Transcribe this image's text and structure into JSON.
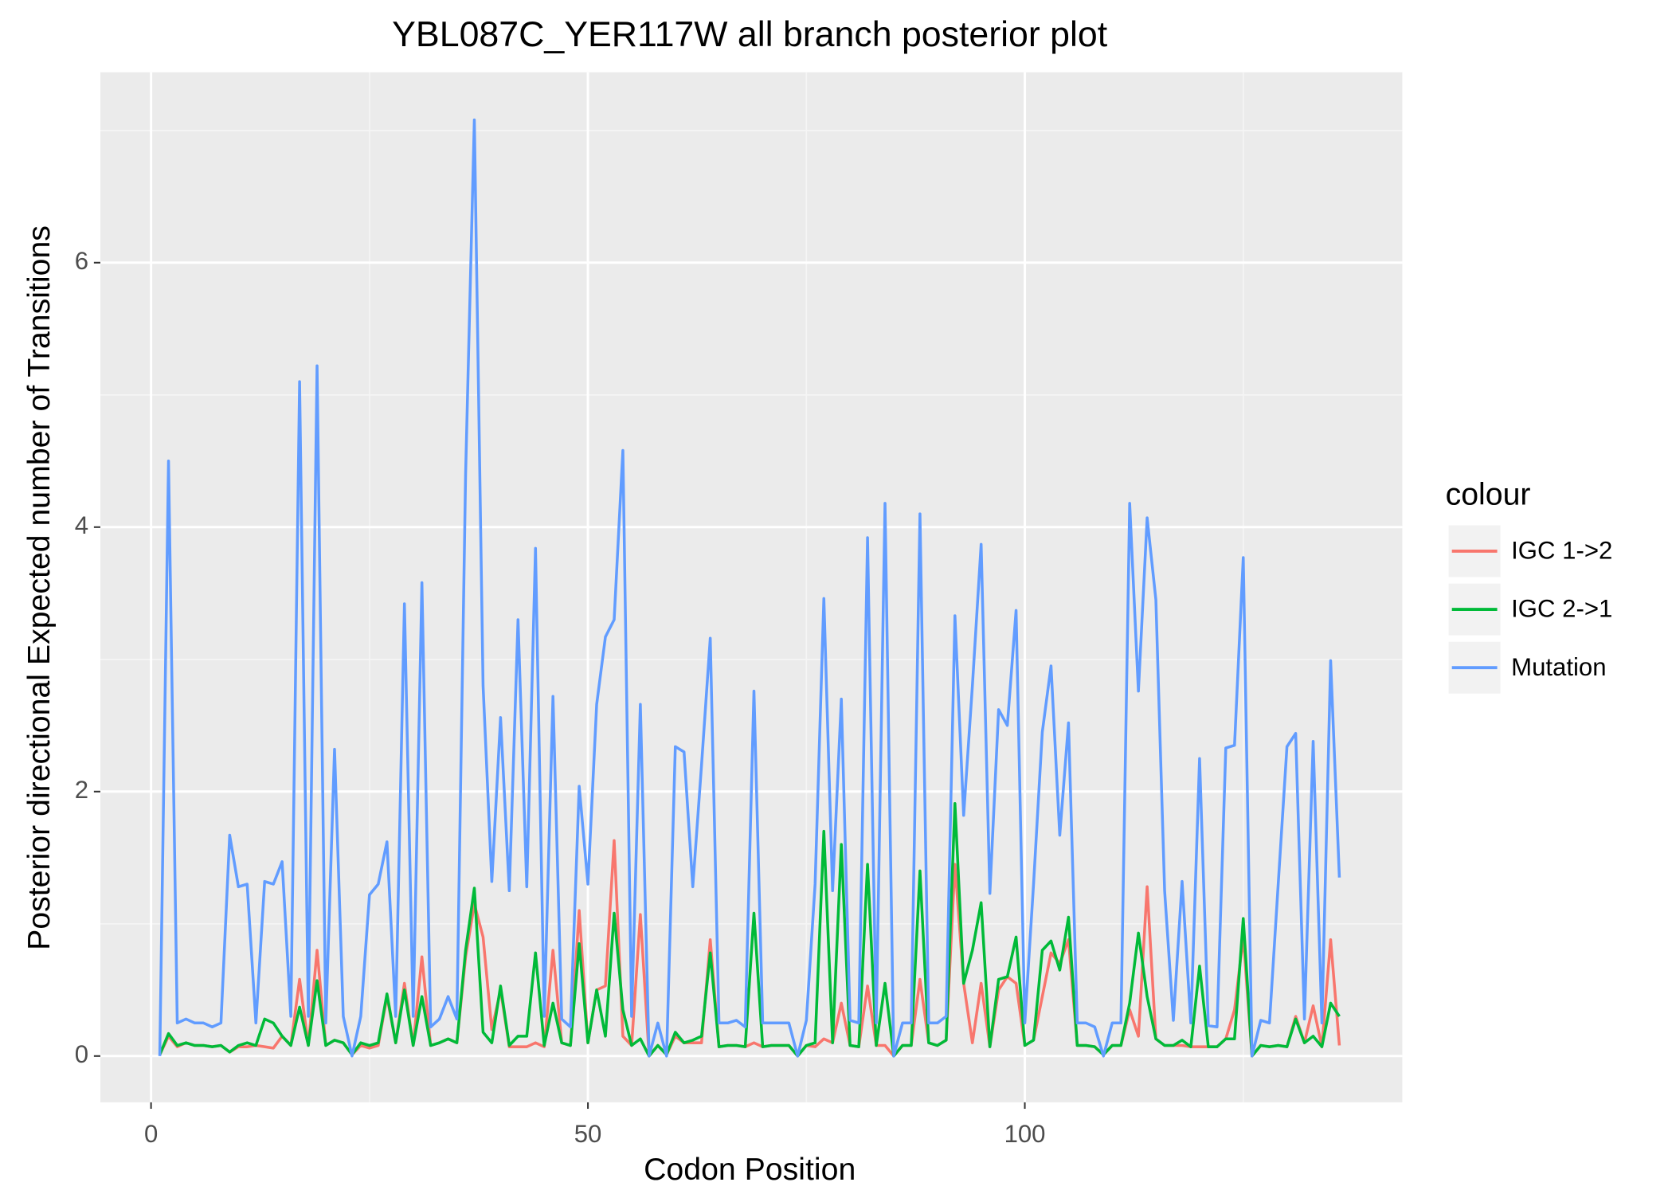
{
  "chart_data": {
    "type": "line",
    "title": "YBL087C_YER117W all branch posterior plot",
    "x_label": "Codon Position",
    "y_label": "Posterior directional Expected number of Transitions",
    "legend_title": "colour",
    "legend_position": "right",
    "grid": true,
    "xlim": [
      -5.8,
      143.2
    ],
    "ylim": [
      -0.35,
      7.44
    ],
    "xticks": [
      0,
      50,
      100
    ],
    "yticks": [
      0,
      2,
      4,
      6
    ],
    "x": [
      1,
      2,
      3,
      4,
      5,
      6,
      7,
      8,
      9,
      10,
      11,
      12,
      13,
      14,
      15,
      16,
      17,
      18,
      19,
      20,
      21,
      22,
      23,
      24,
      25,
      26,
      27,
      28,
      29,
      30,
      31,
      32,
      33,
      34,
      35,
      36,
      37,
      38,
      39,
      40,
      41,
      42,
      43,
      44,
      45,
      46,
      47,
      48,
      49,
      50,
      51,
      52,
      53,
      54,
      55,
      56,
      57,
      58,
      59,
      60,
      61,
      62,
      63,
      64,
      65,
      66,
      67,
      68,
      69,
      70,
      71,
      72,
      73,
      74,
      75,
      76,
      77,
      78,
      79,
      80,
      81,
      82,
      83,
      84,
      85,
      86,
      87,
      88,
      89,
      90,
      91,
      92,
      93,
      94,
      95,
      96,
      97,
      98,
      99,
      100,
      101,
      102,
      103,
      104,
      105,
      106,
      107,
      108,
      109,
      110,
      111,
      112,
      113,
      114,
      115,
      116,
      117,
      118,
      119,
      120,
      121,
      122,
      123,
      124,
      125,
      126,
      127,
      128,
      129,
      130,
      131,
      132,
      133,
      134,
      135,
      136
    ],
    "series": [
      {
        "name": "IGC 1->2",
        "color": "#F8766D",
        "values": [
          0.01,
          0.15,
          0.07,
          0.1,
          0.08,
          0.08,
          0.07,
          0.08,
          0.03,
          0.07,
          0.07,
          0.08,
          0.07,
          0.06,
          0.15,
          0.08,
          0.58,
          0.08,
          0.8,
          0.08,
          0.12,
          0.1,
          0.01,
          0.08,
          0.06,
          0.08,
          0.45,
          0.1,
          0.55,
          0.08,
          0.75,
          0.08,
          0.1,
          0.13,
          0.1,
          0.75,
          1.15,
          0.9,
          0.2,
          0.5,
          0.07,
          0.07,
          0.07,
          0.1,
          0.07,
          0.8,
          0.1,
          0.08,
          1.1,
          0.1,
          0.5,
          0.53,
          1.63,
          0.15,
          0.08,
          1.07,
          0.0,
          0.08,
          0.01,
          0.15,
          0.1,
          0.1,
          0.1,
          0.88,
          0.07,
          0.08,
          0.08,
          0.07,
          0.1,
          0.07,
          0.08,
          0.08,
          0.08,
          0.0,
          0.08,
          0.07,
          0.13,
          0.1,
          0.4,
          0.08,
          0.07,
          0.53,
          0.08,
          0.08,
          0.0,
          0.08,
          0.08,
          0.58,
          0.1,
          0.08,
          0.12,
          1.45,
          0.55,
          0.1,
          0.55,
          0.07,
          0.5,
          0.6,
          0.55,
          0.08,
          0.12,
          0.45,
          0.78,
          0.7,
          0.88,
          0.08,
          0.08,
          0.07,
          0.01,
          0.08,
          0.08,
          0.35,
          0.15,
          1.28,
          0.13,
          0.08,
          0.08,
          0.08,
          0.07,
          0.07,
          0.07,
          0.07,
          0.13,
          0.35,
          0.9,
          0.0,
          0.08,
          0.07,
          0.08,
          0.07,
          0.3,
          0.1,
          0.38,
          0.07,
          0.88,
          0.08
        ]
      },
      {
        "name": "IGC 2->1",
        "color": "#00BA38",
        "values": [
          0.01,
          0.17,
          0.08,
          0.1,
          0.08,
          0.08,
          0.07,
          0.08,
          0.03,
          0.08,
          0.1,
          0.08,
          0.28,
          0.25,
          0.15,
          0.08,
          0.37,
          0.08,
          0.57,
          0.08,
          0.12,
          0.1,
          0.01,
          0.1,
          0.08,
          0.1,
          0.47,
          0.1,
          0.5,
          0.08,
          0.45,
          0.08,
          0.1,
          0.13,
          0.1,
          0.8,
          1.27,
          0.18,
          0.1,
          0.53,
          0.08,
          0.15,
          0.15,
          0.78,
          0.08,
          0.4,
          0.1,
          0.08,
          0.85,
          0.1,
          0.5,
          0.15,
          1.08,
          0.35,
          0.08,
          0.13,
          0.0,
          0.08,
          0.01,
          0.18,
          0.1,
          0.12,
          0.15,
          0.78,
          0.07,
          0.08,
          0.08,
          0.07,
          1.08,
          0.07,
          0.08,
          0.08,
          0.08,
          0.0,
          0.08,
          0.1,
          1.7,
          0.1,
          1.6,
          0.08,
          0.07,
          1.45,
          0.08,
          0.55,
          0.0,
          0.08,
          0.08,
          1.4,
          0.1,
          0.08,
          0.12,
          1.91,
          0.55,
          0.8,
          1.16,
          0.07,
          0.58,
          0.6,
          0.9,
          0.08,
          0.12,
          0.8,
          0.87,
          0.65,
          1.05,
          0.08,
          0.08,
          0.07,
          0.01,
          0.08,
          0.08,
          0.4,
          0.93,
          0.45,
          0.13,
          0.08,
          0.08,
          0.12,
          0.07,
          0.68,
          0.07,
          0.07,
          0.13,
          0.13,
          1.04,
          0.0,
          0.08,
          0.07,
          0.08,
          0.07,
          0.28,
          0.1,
          0.15,
          0.07,
          0.4,
          0.3
        ]
      },
      {
        "name": "Mutation",
        "color": "#619CFF",
        "values": [
          0.0,
          4.5,
          0.25,
          0.28,
          0.25,
          0.25,
          0.22,
          0.25,
          1.67,
          1.28,
          1.3,
          0.25,
          1.32,
          1.3,
          1.47,
          0.3,
          5.1,
          0.3,
          5.22,
          0.25,
          2.32,
          0.3,
          0.0,
          0.3,
          1.22,
          1.3,
          1.62,
          0.3,
          3.42,
          0.3,
          3.58,
          0.22,
          0.28,
          0.45,
          0.28,
          4.4,
          7.08,
          2.8,
          1.32,
          2.56,
          1.25,
          3.3,
          1.28,
          3.84,
          0.3,
          2.72,
          0.28,
          0.22,
          2.04,
          1.3,
          2.66,
          3.17,
          3.3,
          4.58,
          0.3,
          2.66,
          0.0,
          0.25,
          0.0,
          2.34,
          2.3,
          1.28,
          2.2,
          3.16,
          0.25,
          0.25,
          0.27,
          0.22,
          2.76,
          0.25,
          0.25,
          0.25,
          0.25,
          0.0,
          0.27,
          1.3,
          3.46,
          1.25,
          2.7,
          0.27,
          0.25,
          3.92,
          0.25,
          4.18,
          0.0,
          0.25,
          0.25,
          4.1,
          0.25,
          0.25,
          0.3,
          3.33,
          1.82,
          2.8,
          3.87,
          1.23,
          2.62,
          2.5,
          3.37,
          0.25,
          1.3,
          2.45,
          2.95,
          1.67,
          2.52,
          0.25,
          0.25,
          0.22,
          0.0,
          0.25,
          0.25,
          4.18,
          2.76,
          4.07,
          3.45,
          1.25,
          0.27,
          1.32,
          0.25,
          2.25,
          0.23,
          0.22,
          2.33,
          2.35,
          3.77,
          0.0,
          0.27,
          0.25,
          1.3,
          2.34,
          2.44,
          0.28,
          2.38,
          0.25,
          2.99,
          1.35
        ]
      }
    ]
  }
}
